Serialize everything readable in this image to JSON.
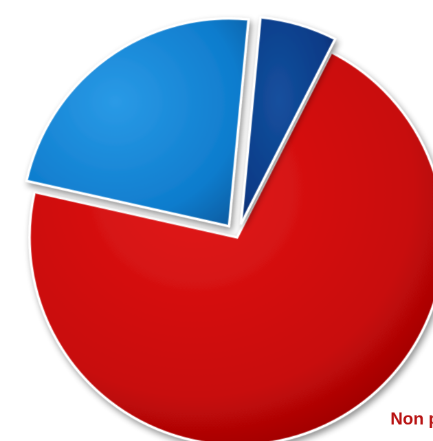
{
  "chart_data": {
    "type": "pie",
    "style": "exploded 3d bevel",
    "slices": [
      {
        "label": "Non pas",
        "value": 71,
        "color": "#cc0a0a",
        "label_color": "#b81212"
      },
      {
        "label": "",
        "value": 23,
        "color": "#1282d4",
        "label_color": ""
      },
      {
        "label": "",
        "value": 6,
        "color": "#0b3a86",
        "label_color": ""
      }
    ]
  }
}
